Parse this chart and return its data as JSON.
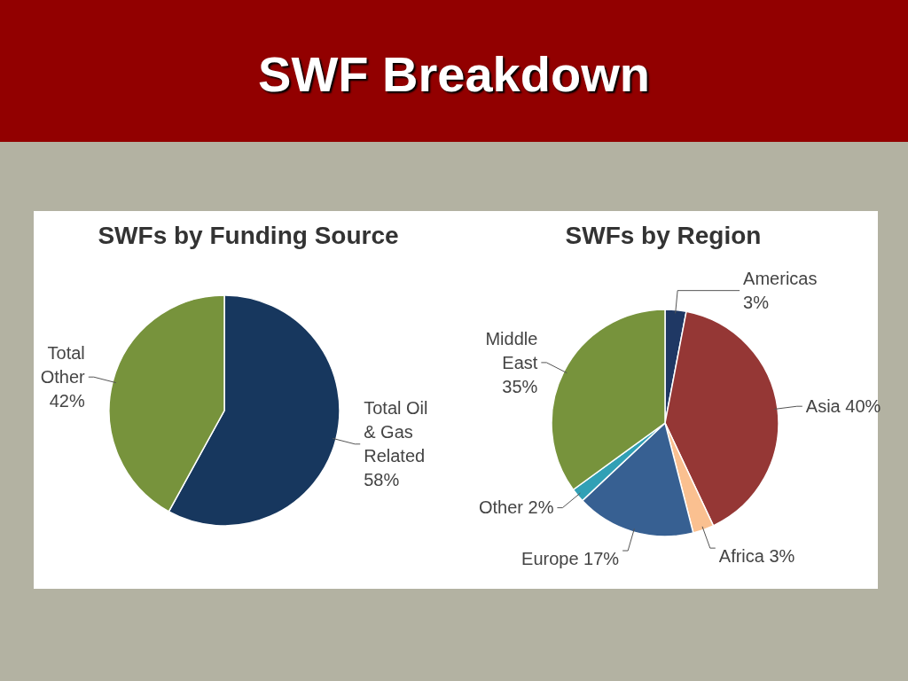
{
  "chart_data": [
    {
      "type": "other",
      "title": "SWF Breakdown"
    },
    {
      "type": "pie",
      "title": "SWFs by Funding Source",
      "categories": [
        "Total Oil & Gas Related",
        "Total Other"
      ],
      "values": [
        58,
        42
      ],
      "value_labels": [
        "58%",
        "42%"
      ],
      "colors": [
        "#17375e",
        "#77933c"
      ]
    },
    {
      "type": "pie",
      "title": "SWFs by Region",
      "categories": [
        "Americas",
        "Asia",
        "Africa",
        "Europe",
        "Other",
        "Middle East"
      ],
      "values": [
        3,
        40,
        3,
        17,
        2,
        35
      ],
      "value_labels": [
        "3%",
        "40%",
        "3%",
        "17%",
        "2%",
        "35%"
      ],
      "colors": [
        "#1f3864",
        "#953735",
        "#fac090",
        "#376092",
        "#31a0b5",
        "#77933c"
      ]
    }
  ]
}
